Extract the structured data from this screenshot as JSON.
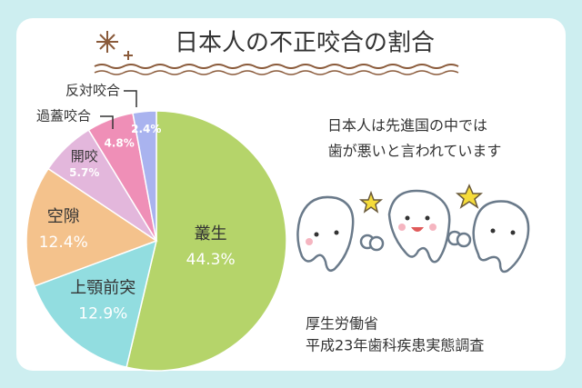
{
  "chart_data": {
    "type": "pie",
    "title": "日本人の不正咬合の割合",
    "categories": [
      "叢生",
      "上顎前突",
      "空隙",
      "開咬",
      "過蓋咬合",
      "反対咬合"
    ],
    "values": [
      44.3,
      12.9,
      12.4,
      5.7,
      4.8,
      2.4
    ],
    "value_labels": [
      "44.3%",
      "12.9%",
      "12.4%",
      "5.7%",
      "4.8%",
      "2.4%"
    ],
    "colors": [
      "#b5d46a",
      "#92dde0",
      "#f4c28c",
      "#e3b7dc",
      "#ef8fb7",
      "#a9b3ef"
    ],
    "annotations": [
      "日本人は先進国の中では",
      "歯が悪いと言われています"
    ],
    "source": [
      "厚生労働省",
      "平成23年歯科疾患実態調査"
    ]
  }
}
